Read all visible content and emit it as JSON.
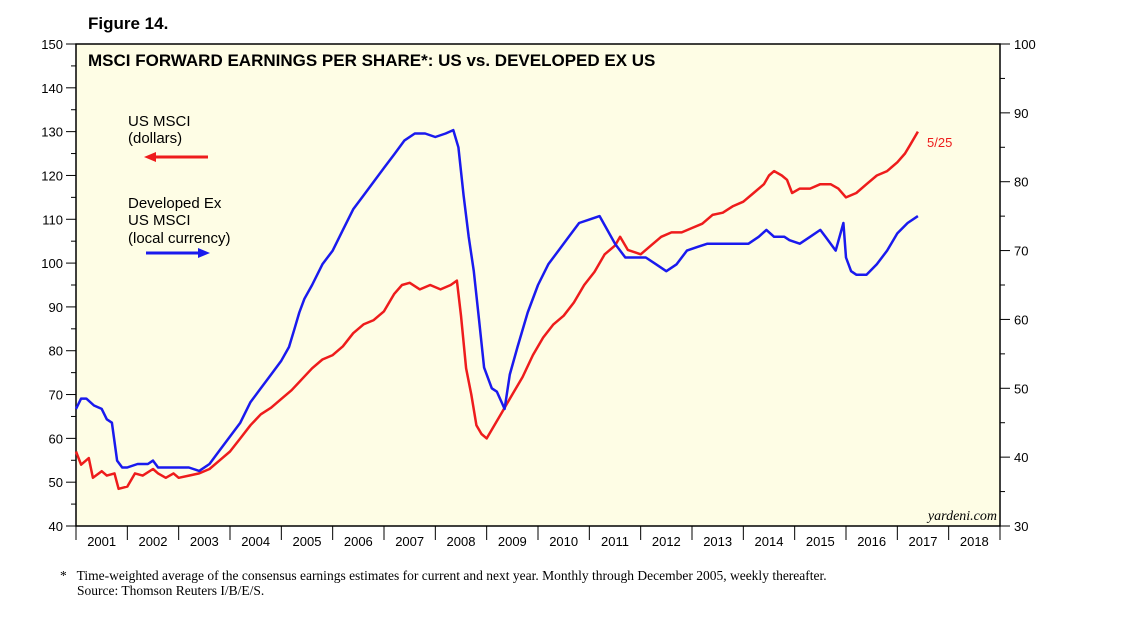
{
  "figure_label": "Figure 14.",
  "chart_data": {
    "type": "line",
    "title": "MSCI FORWARD EARNINGS PER SHARE*: US vs. DEVELOPED EX US",
    "x_ticks": [
      "2001",
      "2002",
      "2003",
      "2004",
      "2005",
      "2006",
      "2007",
      "2008",
      "2009",
      "2010",
      "2011",
      "2012",
      "2013",
      "2014",
      "2015",
      "2016",
      "2017",
      "2018"
    ],
    "xlim": [
      2001,
      2019
    ],
    "left_axis": {
      "ylim": [
        40,
        150
      ],
      "ticks": [
        40,
        50,
        60,
        70,
        80,
        90,
        100,
        110,
        120,
        130,
        140,
        150
      ]
    },
    "right_axis": {
      "ylim": [
        30,
        100
      ],
      "ticks": [
        30,
        40,
        50,
        60,
        70,
        80,
        90,
        100
      ]
    },
    "legend": [
      {
        "text": [
          "US MSCI",
          "(dollars)"
        ],
        "arrow": "left",
        "color": "#ee1c1c"
      },
      {
        "text": [
          "Developed Ex",
          "US MSCI",
          "(local currency)"
        ],
        "arrow": "right",
        "color": "#1a1aee"
      }
    ],
    "end_label": "5/25",
    "watermark": "yardeni.com",
    "series": [
      {
        "name": "US MSCI (dollars)",
        "axis": "left",
        "color": "#ee1c1c",
        "points": [
          [
            2001.0,
            57
          ],
          [
            2001.1,
            54
          ],
          [
            2001.25,
            55.5
          ],
          [
            2001.33,
            51
          ],
          [
            2001.5,
            52.5
          ],
          [
            2001.6,
            51.5
          ],
          [
            2001.75,
            52
          ],
          [
            2001.83,
            48.5
          ],
          [
            2002.0,
            49
          ],
          [
            2002.15,
            52
          ],
          [
            2002.3,
            51.5
          ],
          [
            2002.5,
            53
          ],
          [
            2002.6,
            52
          ],
          [
            2002.75,
            51
          ],
          [
            2002.9,
            52
          ],
          [
            2003.0,
            51
          ],
          [
            2003.2,
            51.5
          ],
          [
            2003.4,
            52
          ],
          [
            2003.6,
            53
          ],
          [
            2003.8,
            55
          ],
          [
            2004.0,
            57
          ],
          [
            2004.2,
            60
          ],
          [
            2004.4,
            63
          ],
          [
            2004.6,
            65.5
          ],
          [
            2004.8,
            67
          ],
          [
            2005.0,
            69
          ],
          [
            2005.2,
            71
          ],
          [
            2005.4,
            73.5
          ],
          [
            2005.6,
            76
          ],
          [
            2005.8,
            78
          ],
          [
            2006.0,
            79
          ],
          [
            2006.2,
            81
          ],
          [
            2006.4,
            84
          ],
          [
            2006.6,
            86
          ],
          [
            2006.8,
            87
          ],
          [
            2007.0,
            89
          ],
          [
            2007.2,
            93
          ],
          [
            2007.35,
            95
          ],
          [
            2007.5,
            95.5
          ],
          [
            2007.7,
            94
          ],
          [
            2007.9,
            95
          ],
          [
            2008.1,
            94
          ],
          [
            2008.3,
            95
          ],
          [
            2008.42,
            96
          ],
          [
            2008.5,
            88
          ],
          [
            2008.6,
            76
          ],
          [
            2008.7,
            70
          ],
          [
            2008.8,
            63
          ],
          [
            2008.9,
            61
          ],
          [
            2009.0,
            60
          ],
          [
            2009.15,
            63
          ],
          [
            2009.3,
            66
          ],
          [
            2009.5,
            70
          ],
          [
            2009.7,
            74
          ],
          [
            2009.9,
            79
          ],
          [
            2010.1,
            83
          ],
          [
            2010.3,
            86
          ],
          [
            2010.5,
            88
          ],
          [
            2010.7,
            91
          ],
          [
            2010.9,
            95
          ],
          [
            2011.1,
            98
          ],
          [
            2011.3,
            102
          ],
          [
            2011.5,
            104
          ],
          [
            2011.6,
            106
          ],
          [
            2011.75,
            103
          ],
          [
            2012.0,
            102
          ],
          [
            2012.2,
            104
          ],
          [
            2012.4,
            106
          ],
          [
            2012.6,
            107
          ],
          [
            2012.8,
            107
          ],
          [
            2013.0,
            108
          ],
          [
            2013.2,
            109
          ],
          [
            2013.4,
            111
          ],
          [
            2013.6,
            111.5
          ],
          [
            2013.8,
            113
          ],
          [
            2014.0,
            114
          ],
          [
            2014.2,
            116
          ],
          [
            2014.4,
            118
          ],
          [
            2014.5,
            120
          ],
          [
            2014.6,
            121
          ],
          [
            2014.75,
            120
          ],
          [
            2014.85,
            119
          ],
          [
            2014.95,
            116
          ],
          [
            2015.1,
            117
          ],
          [
            2015.3,
            117
          ],
          [
            2015.5,
            118
          ],
          [
            2015.7,
            118
          ],
          [
            2015.85,
            117
          ],
          [
            2016.0,
            115
          ],
          [
            2016.2,
            116
          ],
          [
            2016.4,
            118
          ],
          [
            2016.6,
            120
          ],
          [
            2016.8,
            121
          ],
          [
            2017.0,
            123
          ],
          [
            2017.15,
            125
          ],
          [
            2017.25,
            127
          ],
          [
            2017.4,
            130
          ]
        ]
      },
      {
        "name": "Developed Ex US MSCI (local currency)",
        "axis": "right",
        "color": "#1a1aee",
        "points": [
          [
            2001.0,
            47
          ],
          [
            2001.1,
            48.5
          ],
          [
            2001.2,
            48.5
          ],
          [
            2001.35,
            47.5
          ],
          [
            2001.5,
            47
          ],
          [
            2001.6,
            45.5
          ],
          [
            2001.7,
            45
          ],
          [
            2001.8,
            39.5
          ],
          [
            2001.9,
            38.5
          ],
          [
            2002.0,
            38.5
          ],
          [
            2002.2,
            39
          ],
          [
            2002.4,
            39
          ],
          [
            2002.5,
            39.5
          ],
          [
            2002.6,
            38.5
          ],
          [
            2002.8,
            38.5
          ],
          [
            2003.0,
            38.5
          ],
          [
            2003.2,
            38.5
          ],
          [
            2003.4,
            38
          ],
          [
            2003.6,
            39
          ],
          [
            2003.8,
            41
          ],
          [
            2004.0,
            43
          ],
          [
            2004.2,
            45
          ],
          [
            2004.4,
            48
          ],
          [
            2004.6,
            50
          ],
          [
            2004.8,
            52
          ],
          [
            2005.0,
            54
          ],
          [
            2005.15,
            56
          ],
          [
            2005.25,
            58.5
          ],
          [
            2005.35,
            61
          ],
          [
            2005.45,
            63
          ],
          [
            2005.6,
            65
          ],
          [
            2005.8,
            68
          ],
          [
            2006.0,
            70
          ],
          [
            2006.2,
            73
          ],
          [
            2006.4,
            76
          ],
          [
            2006.6,
            78
          ],
          [
            2006.8,
            80
          ],
          [
            2007.0,
            82
          ],
          [
            2007.2,
            84
          ],
          [
            2007.4,
            86
          ],
          [
            2007.6,
            87
          ],
          [
            2007.8,
            87
          ],
          [
            2008.0,
            86.5
          ],
          [
            2008.2,
            87
          ],
          [
            2008.35,
            87.5
          ],
          [
            2008.45,
            85
          ],
          [
            2008.55,
            78
          ],
          [
            2008.65,
            72
          ],
          [
            2008.75,
            67
          ],
          [
            2008.85,
            60
          ],
          [
            2008.95,
            53
          ],
          [
            2009.1,
            50
          ],
          [
            2009.2,
            49.5
          ],
          [
            2009.35,
            47
          ],
          [
            2009.45,
            52
          ],
          [
            2009.6,
            56
          ],
          [
            2009.8,
            61
          ],
          [
            2010.0,
            65
          ],
          [
            2010.2,
            68
          ],
          [
            2010.4,
            70
          ],
          [
            2010.6,
            72
          ],
          [
            2010.8,
            74
          ],
          [
            2011.0,
            74.5
          ],
          [
            2011.2,
            75
          ],
          [
            2011.35,
            73
          ],
          [
            2011.5,
            71
          ],
          [
            2011.7,
            69
          ],
          [
            2011.9,
            69
          ],
          [
            2012.1,
            69
          ],
          [
            2012.3,
            68
          ],
          [
            2012.5,
            67
          ],
          [
            2012.7,
            68
          ],
          [
            2012.9,
            70
          ],
          [
            2013.1,
            70.5
          ],
          [
            2013.3,
            71
          ],
          [
            2013.5,
            71
          ],
          [
            2013.7,
            71
          ],
          [
            2013.9,
            71
          ],
          [
            2014.1,
            71
          ],
          [
            2014.3,
            72
          ],
          [
            2014.45,
            73
          ],
          [
            2014.6,
            72
          ],
          [
            2014.8,
            72
          ],
          [
            2014.9,
            71.5
          ],
          [
            2015.1,
            71
          ],
          [
            2015.3,
            72
          ],
          [
            2015.5,
            73
          ],
          [
            2015.6,
            72
          ],
          [
            2015.8,
            70
          ],
          [
            2015.95,
            74
          ],
          [
            2016.0,
            69
          ],
          [
            2016.1,
            67
          ],
          [
            2016.2,
            66.5
          ],
          [
            2016.4,
            66.5
          ],
          [
            2016.6,
            68
          ],
          [
            2016.8,
            70
          ],
          [
            2017.0,
            72.5
          ],
          [
            2017.2,
            74
          ],
          [
            2017.4,
            75
          ]
        ]
      }
    ]
  },
  "footnote": {
    "marker": "*",
    "line1": "Time-weighted average of the consensus earnings estimates for current and next year. Monthly through December 2005, weekly thereafter.",
    "line2": "Source: Thomson Reuters I/B/E/S."
  }
}
